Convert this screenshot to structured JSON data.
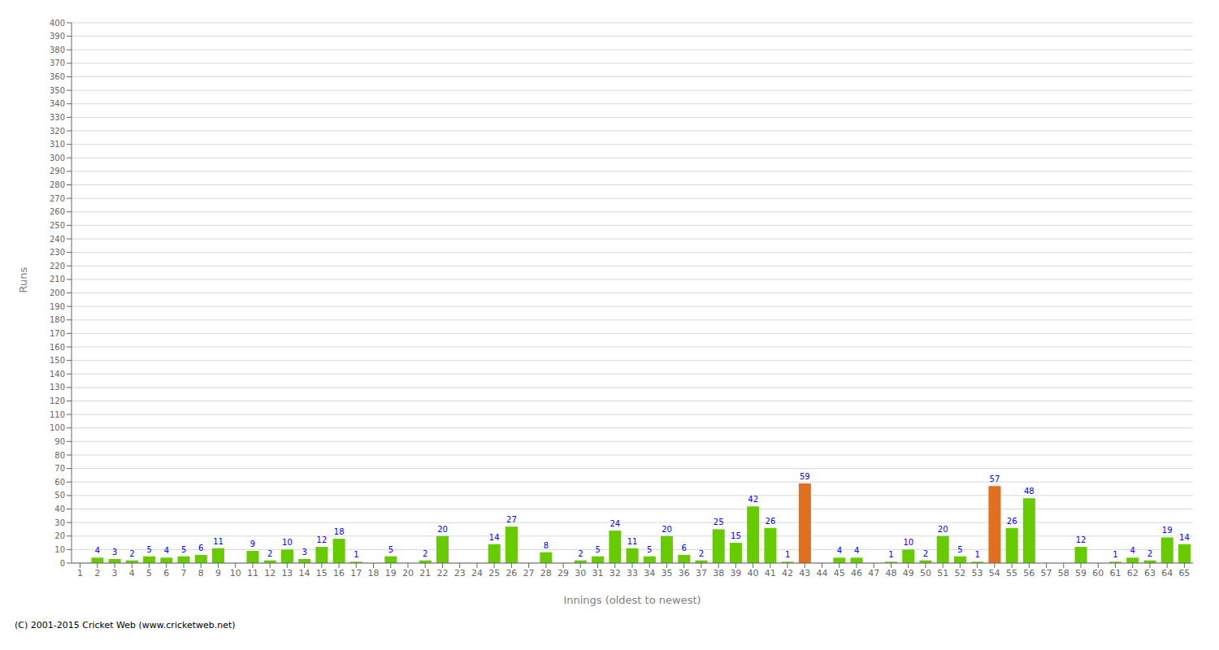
{
  "chart_data": {
    "type": "bar",
    "xlabel": "Innings (oldest to newest)",
    "ylabel": "Runs",
    "annotations": [
      "(C) 2001-2015 Cricket Web (www.cricketweb.net)"
    ],
    "categories": [
      "1",
      "2",
      "3",
      "4",
      "5",
      "6",
      "7",
      "8",
      "9",
      "10",
      "11",
      "12",
      "13",
      "14",
      "15",
      "16",
      "17",
      "18",
      "19",
      "20",
      "21",
      "22",
      "23",
      "24",
      "25",
      "26",
      "27",
      "28",
      "29",
      "30",
      "31",
      "32",
      "33",
      "34",
      "35",
      "36",
      "37",
      "38",
      "39",
      "40",
      "41",
      "42",
      "43",
      "44",
      "45",
      "46",
      "47",
      "48",
      "49",
      "50",
      "51",
      "52",
      "53",
      "54",
      "55",
      "56",
      "57",
      "58",
      "59",
      "60",
      "61",
      "62",
      "63",
      "64",
      "65"
    ],
    "values": [
      0,
      4,
      3,
      2,
      5,
      4,
      5,
      6,
      11,
      0,
      9,
      2,
      10,
      3,
      12,
      18,
      1,
      0,
      5,
      0,
      2,
      20,
      0,
      0,
      14,
      27,
      0,
      8,
      0,
      2,
      5,
      24,
      11,
      5,
      20,
      6,
      2,
      25,
      15,
      42,
      26,
      1,
      59,
      0,
      4,
      4,
      0,
      1,
      10,
      2,
      20,
      5,
      1,
      57,
      26,
      48,
      0,
      0,
      12,
      0,
      1,
      4,
      2,
      19,
      14
    ],
    "colors": [
      "#66cc00",
      "#66cc00",
      "#66cc00",
      "#66cc00",
      "#66cc00",
      "#66cc00",
      "#66cc00",
      "#66cc00",
      "#66cc00",
      "#66cc00",
      "#66cc00",
      "#66cc00",
      "#66cc00",
      "#66cc00",
      "#66cc00",
      "#66cc00",
      "#66cc00",
      "#66cc00",
      "#66cc00",
      "#66cc00",
      "#66cc00",
      "#66cc00",
      "#66cc00",
      "#66cc00",
      "#66cc00",
      "#66cc00",
      "#66cc00",
      "#66cc00",
      "#66cc00",
      "#66cc00",
      "#66cc00",
      "#66cc00",
      "#66cc00",
      "#66cc00",
      "#66cc00",
      "#66cc00",
      "#66cc00",
      "#66cc00",
      "#66cc00",
      "#66cc00",
      "#66cc00",
      "#66cc00",
      "#e07020",
      "#66cc00",
      "#66cc00",
      "#66cc00",
      "#66cc00",
      "#66cc00",
      "#66cc00",
      "#66cc00",
      "#66cc00",
      "#66cc00",
      "#66cc00",
      "#e07020",
      "#66cc00",
      "#66cc00",
      "#66cc00",
      "#66cc00",
      "#66cc00",
      "#66cc00",
      "#66cc00",
      "#66cc00",
      "#66cc00",
      "#66cc00",
      "#66cc00"
    ],
    "ylim": [
      0,
      400
    ],
    "yticks": [
      0,
      10,
      20,
      30,
      40,
      50,
      60,
      70,
      80,
      90,
      100,
      110,
      120,
      130,
      140,
      150,
      160,
      170,
      180,
      190,
      200,
      210,
      220,
      230,
      240,
      250,
      260,
      270,
      280,
      290,
      300,
      310,
      320,
      330,
      340,
      350,
      360,
      370,
      380,
      390,
      400
    ],
    "grid": true,
    "data_labels": true
  }
}
